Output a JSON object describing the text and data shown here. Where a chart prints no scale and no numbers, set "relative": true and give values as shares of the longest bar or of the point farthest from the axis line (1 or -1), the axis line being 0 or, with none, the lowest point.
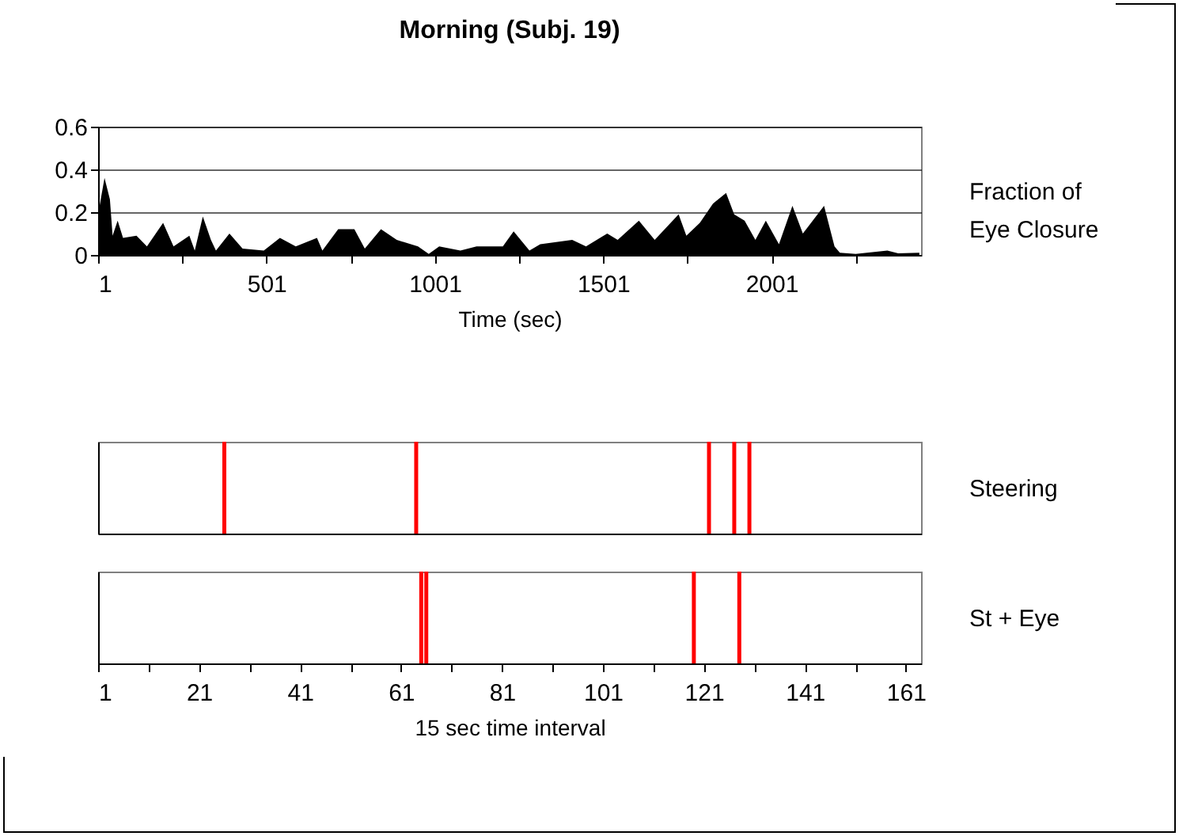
{
  "chart_data": [
    {
      "type": "area",
      "title": "Morning (Subj. 19)",
      "xlabel": "Time (sec)",
      "ylabel": "Fraction of Eye Closure",
      "color": "#000000",
      "x": [
        1,
        20,
        36,
        44,
        59,
        75,
        115,
        146,
        194,
        225,
        272,
        288,
        312,
        336,
        351,
        391,
        430,
        493,
        541,
        588,
        651,
        667,
        714,
        762,
        793,
        841,
        888,
        951,
        983,
        1014,
        1077,
        1125,
        1203,
        1235,
        1282,
        1314,
        1409,
        1450,
        1513,
        1544,
        1607,
        1654,
        1725,
        1748,
        1788,
        1827,
        1866,
        1890,
        1921,
        1953,
        1984,
        2023,
        2063,
        2094,
        2157,
        2188,
        2204,
        2251,
        2345,
        2377,
        2440
      ],
      "values": [
        0.19,
        0.36,
        0.26,
        0.09,
        0.16,
        0.08,
        0.09,
        0.04,
        0.15,
        0.04,
        0.09,
        0.02,
        0.18,
        0.07,
        0.02,
        0.1,
        0.03,
        0.02,
        0.08,
        0.04,
        0.08,
        0.02,
        0.12,
        0.12,
        0.03,
        0.12,
        0.07,
        0.04,
        0.005,
        0.04,
        0.02,
        0.04,
        0.04,
        0.11,
        0.02,
        0.05,
        0.07,
        0.04,
        0.1,
        0.07,
        0.16,
        0.07,
        0.19,
        0.09,
        0.15,
        0.24,
        0.29,
        0.19,
        0.16,
        0.07,
        0.16,
        0.05,
        0.23,
        0.1,
        0.23,
        0.04,
        0.01,
        0.005,
        0.02,
        0.007,
        0.01
      ],
      "xlim": [
        1,
        2445
      ],
      "xticks": [
        1,
        {
          "value": 251,
          "label": null
        },
        501,
        {
          "value": 751,
          "label": null
        },
        1001,
        {
          "value": 1251,
          "label": null
        },
        1501,
        {
          "value": 1751,
          "label": null
        },
        2001,
        {
          "value": 2251,
          "label": null
        }
      ],
      "ylim": [
        0,
        0.6
      ],
      "yticks": [
        0,
        0.2,
        0.4,
        0.6
      ],
      "grid": "y"
    },
    {
      "type": "bar",
      "ylabel": "Steering",
      "color": "#ff0000",
      "relative": true,
      "tick_labels": false,
      "x": [
        26,
        64,
        122,
        127,
        130
      ],
      "values": [
        1,
        1,
        1,
        1,
        1
      ],
      "xlim": [
        1,
        164
      ]
    },
    {
      "type": "bar",
      "ylabel": "St + Eye",
      "xlabel": "15 sec time interval",
      "color": "#ff0000",
      "relative": true,
      "tick_labels": "x",
      "x": [
        65,
        66,
        119,
        128
      ],
      "values": [
        1,
        1,
        1,
        1
      ],
      "xlim": [
        1,
        164
      ],
      "xticks": [
        1,
        {
          "value": 11,
          "label": null
        },
        21,
        {
          "value": 31,
          "label": null
        },
        41,
        {
          "value": 51,
          "label": null
        },
        61,
        {
          "value": 71,
          "label": null
        },
        81,
        {
          "value": 91,
          "label": null
        },
        101,
        {
          "value": 111,
          "label": null
        },
        121,
        {
          "value": 131,
          "label": null
        },
        141,
        {
          "value": 151,
          "label": null
        },
        161
      ]
    }
  ]
}
